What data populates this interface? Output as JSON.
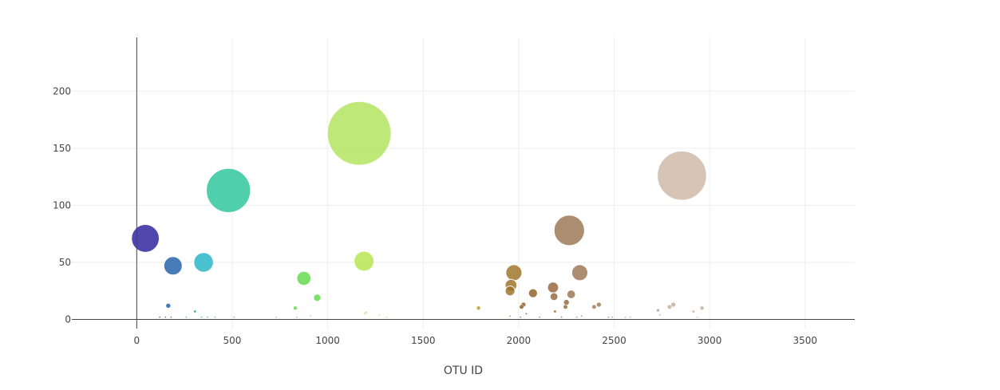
{
  "chart_data": {
    "type": "scatter",
    "variant": "bubble",
    "title": "",
    "xlabel": "OTU ID",
    "ylabel": "",
    "xlim": [
      -340,
      3760
    ],
    "ylim": [
      -8,
      247
    ],
    "x_ticks": [
      0,
      500,
      1000,
      1500,
      2000,
      2500,
      3000,
      3500
    ],
    "y_ticks": [
      0,
      50,
      100,
      150,
      200
    ],
    "grid": true,
    "legend": "none",
    "points": [
      {
        "x": 45,
        "y": 71,
        "size": 71,
        "color": "#2a1f9a",
        "opacity": 0.82
      },
      {
        "x": 190,
        "y": 47,
        "size": 47,
        "color": "#1f5fa8",
        "opacity": 0.82
      },
      {
        "x": 350,
        "y": 50,
        "size": 50,
        "color": "#21b3c4",
        "opacity": 0.82
      },
      {
        "x": 480,
        "y": 113,
        "size": 113,
        "color": "#28c59a",
        "opacity": 0.82
      },
      {
        "x": 165,
        "y": 12,
        "size": 12,
        "color": "#1f5fa8",
        "opacity": 0.82
      },
      {
        "x": 305,
        "y": 7,
        "size": 7,
        "color": "#21a0b0",
        "opacity": 0.82
      },
      {
        "x": 875,
        "y": 36,
        "size": 36,
        "color": "#5fd94a",
        "opacity": 0.82
      },
      {
        "x": 945,
        "y": 19,
        "size": 19,
        "color": "#5fd94a",
        "opacity": 0.82
      },
      {
        "x": 830,
        "y": 10,
        "size": 10,
        "color": "#5fd94a",
        "opacity": 0.82
      },
      {
        "x": 1165,
        "y": 163,
        "size": 163,
        "color": "#a8e04a",
        "opacity": 0.75
      },
      {
        "x": 1190,
        "y": 51,
        "size": 51,
        "color": "#b5e44a",
        "opacity": 0.82
      },
      {
        "x": 1790,
        "y": 10,
        "size": 10,
        "color": "#b89a30",
        "opacity": 0.82
      },
      {
        "x": 1975,
        "y": 41,
        "size": 41,
        "color": "#9c7024",
        "opacity": 0.82
      },
      {
        "x": 1960,
        "y": 30,
        "size": 30,
        "color": "#9c7024",
        "opacity": 0.82
      },
      {
        "x": 1955,
        "y": 25,
        "size": 25,
        "color": "#9c7024",
        "opacity": 0.82
      },
      {
        "x": 2075,
        "y": 23,
        "size": 23,
        "color": "#8f5f24",
        "opacity": 0.82
      },
      {
        "x": 2025,
        "y": 13,
        "size": 13,
        "color": "#8f5f24",
        "opacity": 0.82
      },
      {
        "x": 2015,
        "y": 11,
        "size": 11,
        "color": "#8f5f24",
        "opacity": 0.82
      },
      {
        "x": 2180,
        "y": 28,
        "size": 28,
        "color": "#94653c",
        "opacity": 0.82
      },
      {
        "x": 2185,
        "y": 20,
        "size": 20,
        "color": "#94653c",
        "opacity": 0.82
      },
      {
        "x": 2265,
        "y": 78,
        "size": 78,
        "color": "#9a7450",
        "opacity": 0.82
      },
      {
        "x": 2320,
        "y": 41,
        "size": 41,
        "color": "#9a7450",
        "opacity": 0.82
      },
      {
        "x": 2275,
        "y": 22,
        "size": 22,
        "color": "#9a7450",
        "opacity": 0.82
      },
      {
        "x": 2250,
        "y": 15,
        "size": 15,
        "color": "#94653c",
        "opacity": 0.82
      },
      {
        "x": 2245,
        "y": 11,
        "size": 11,
        "color": "#94653c",
        "opacity": 0.82
      },
      {
        "x": 2420,
        "y": 13,
        "size": 13,
        "color": "#a07a55",
        "opacity": 0.82
      },
      {
        "x": 2395,
        "y": 11,
        "size": 11,
        "color": "#a07a55",
        "opacity": 0.82
      },
      {
        "x": 2190,
        "y": 7,
        "size": 7,
        "color": "#94653c",
        "opacity": 0.82
      },
      {
        "x": 2040,
        "y": 5,
        "size": 5,
        "color": "#8f5f24",
        "opacity": 0.82
      },
      {
        "x": 2855,
        "y": 126,
        "size": 126,
        "color": "#cdb8a6",
        "opacity": 0.82
      },
      {
        "x": 2810,
        "y": 13,
        "size": 13,
        "color": "#c6ad99",
        "opacity": 0.82
      },
      {
        "x": 2790,
        "y": 11,
        "size": 11,
        "color": "#c6ad99",
        "opacity": 0.82
      },
      {
        "x": 2960,
        "y": 10,
        "size": 10,
        "color": "#c6ad99",
        "opacity": 0.82
      },
      {
        "x": 2730,
        "y": 8,
        "size": 8,
        "color": "#b89a85",
        "opacity": 0.82
      },
      {
        "x": 2915,
        "y": 7,
        "size": 7,
        "color": "#c6ad99",
        "opacity": 0.82
      },
      {
        "x": 2740,
        "y": 4,
        "size": 4,
        "color": "#a07a55",
        "opacity": 0.82
      },
      {
        "x": 1195,
        "y": 5,
        "size": 5,
        "color": "#b5e44a",
        "opacity": 0.82
      },
      {
        "x": 1270,
        "y": 4,
        "size": 4,
        "color": "#b5e44a",
        "opacity": 0.82
      },
      {
        "x": 1200,
        "y": 6,
        "size": 6,
        "color": "#b5e44a",
        "opacity": 0.82
      },
      {
        "x": 120,
        "y": 2,
        "size": 2,
        "color": "#2a1f9a",
        "opacity": 0.82
      },
      {
        "x": 150,
        "y": 2,
        "size": 2,
        "color": "#1f5fa8",
        "opacity": 0.82
      },
      {
        "x": 180,
        "y": 2,
        "size": 2,
        "color": "#1f5fa8",
        "opacity": 0.82
      },
      {
        "x": 260,
        "y": 2,
        "size": 2,
        "color": "#21a0b0",
        "opacity": 0.82
      },
      {
        "x": 340,
        "y": 2,
        "size": 2,
        "color": "#21b3c4",
        "opacity": 0.82
      },
      {
        "x": 370,
        "y": 2,
        "size": 2,
        "color": "#21b3c4",
        "opacity": 0.82
      },
      {
        "x": 410,
        "y": 2,
        "size": 2,
        "color": "#28c59a",
        "opacity": 0.82
      },
      {
        "x": 510,
        "y": 2,
        "size": 2,
        "color": "#28c59a",
        "opacity": 0.82
      },
      {
        "x": 730,
        "y": 2,
        "size": 2,
        "color": "#5fd94a",
        "opacity": 0.82
      },
      {
        "x": 840,
        "y": 2,
        "size": 2,
        "color": "#5fd94a",
        "opacity": 0.82
      },
      {
        "x": 910,
        "y": 3,
        "size": 3,
        "color": "#5fd94a",
        "opacity": 0.82
      },
      {
        "x": 1310,
        "y": 2,
        "size": 2,
        "color": "#b5e44a",
        "opacity": 0.82
      },
      {
        "x": 1955,
        "y": 3,
        "size": 3,
        "color": "#9c7024",
        "opacity": 0.82
      },
      {
        "x": 2010,
        "y": 2,
        "size": 2,
        "color": "#8f5f24",
        "opacity": 0.82
      },
      {
        "x": 2110,
        "y": 2,
        "size": 2,
        "color": "#94653c",
        "opacity": 0.82
      },
      {
        "x": 2225,
        "y": 2,
        "size": 2,
        "color": "#94653c",
        "opacity": 0.82
      },
      {
        "x": 2305,
        "y": 2,
        "size": 2,
        "color": "#9a7450",
        "opacity": 0.82
      },
      {
        "x": 2330,
        "y": 3,
        "size": 3,
        "color": "#9a7450",
        "opacity": 0.82
      },
      {
        "x": 2470,
        "y": 2,
        "size": 2,
        "color": "#a07a55",
        "opacity": 0.82
      },
      {
        "x": 2490,
        "y": 2,
        "size": 2,
        "color": "#a07a55",
        "opacity": 0.82
      },
      {
        "x": 2560,
        "y": 2,
        "size": 2,
        "color": "#b89a85",
        "opacity": 0.82
      },
      {
        "x": 2585,
        "y": 2,
        "size": 2,
        "color": "#b89a85",
        "opacity": 0.82
      },
      {
        "x": 2935,
        "y": 2,
        "size": 2,
        "color": "#c6ad99",
        "opacity": 0.82
      }
    ]
  }
}
